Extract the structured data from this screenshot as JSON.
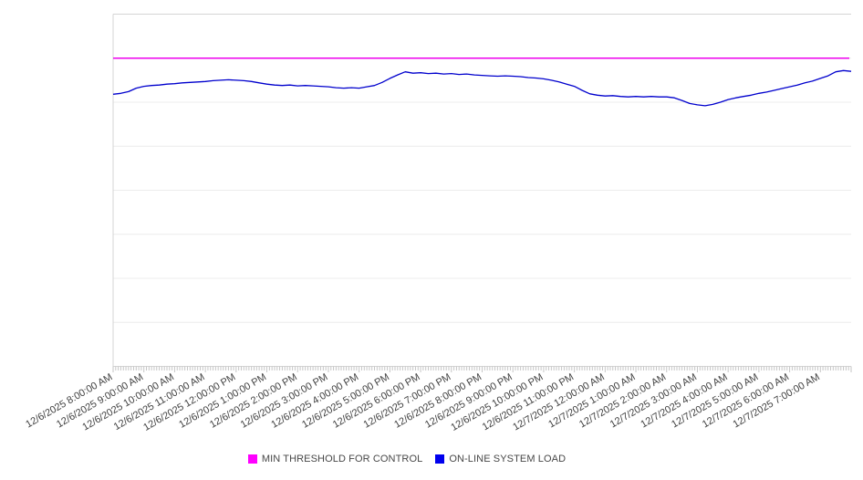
{
  "chart_data": {
    "type": "line",
    "title": "",
    "xlabel": "",
    "ylabel": "",
    "grid": "horizontal",
    "legend_position": "bottom-center",
    "ylim": [
      0,
      8
    ],
    "y_gridline_step": 1,
    "y_tick_labels_visible": false,
    "x_labels": [
      "12/6/2025 8:00:00 AM",
      "12/6/2025 9:00:00 AM",
      "12/6/2025 10:00:00 AM",
      "12/6/2025 11:00:00 AM",
      "12/6/2025 12:00:00 PM",
      "12/6/2025 1:00:00 PM",
      "12/6/2025 2:00:00 PM",
      "12/6/2025 3:00:00 PM",
      "12/6/2025 4:00:00 PM",
      "12/6/2025 5:00:00 PM",
      "12/6/2025 6:00:00 PM",
      "12/6/2025 7:00:00 PM",
      "12/6/2025 8:00:00 PM",
      "12/6/2025 9:00:00 PM",
      "12/6/2025 10:00:00 PM",
      "12/6/2025 11:00:00 PM",
      "12/7/2025 12:00:00 AM",
      "12/7/2025 1:00:00 AM",
      "12/7/2025 2:00:00 AM",
      "12/7/2025 3:00:00 AM",
      "12/7/2025 4:00:00 AM",
      "12/7/2025 5:00:00 AM",
      "12/7/2025 6:00:00 AM",
      "12/7/2025 7:00:00 AM"
    ],
    "hours_span": 24,
    "minor_ticks_per_hour": 12,
    "series": [
      {
        "name": "MIN THRESHOLD FOR CONTROL",
        "type": "constant",
        "value": 7.0,
        "color": "#ee00ee"
      },
      {
        "name": "ON-LINE SYSTEM LOAD",
        "type": "values",
        "sample_interval_minutes": 15,
        "color": "#0000cd",
        "values": [
          6.18,
          6.2,
          6.24,
          6.32,
          6.36,
          6.38,
          6.39,
          6.41,
          6.42,
          6.44,
          6.45,
          6.46,
          6.47,
          6.49,
          6.5,
          6.51,
          6.5,
          6.49,
          6.47,
          6.44,
          6.41,
          6.39,
          6.38,
          6.39,
          6.37,
          6.38,
          6.37,
          6.36,
          6.35,
          6.33,
          6.32,
          6.33,
          6.32,
          6.35,
          6.38,
          6.45,
          6.54,
          6.62,
          6.69,
          6.66,
          6.67,
          6.65,
          6.66,
          6.64,
          6.65,
          6.63,
          6.64,
          6.62,
          6.61,
          6.6,
          6.59,
          6.6,
          6.59,
          6.58,
          6.56,
          6.55,
          6.53,
          6.5,
          6.46,
          6.41,
          6.36,
          6.27,
          6.19,
          6.16,
          6.14,
          6.15,
          6.13,
          6.12,
          6.13,
          6.12,
          6.13,
          6.12,
          6.12,
          6.1,
          6.04,
          5.97,
          5.94,
          5.92,
          5.95,
          6.0,
          6.06,
          6.1,
          6.13,
          6.16,
          6.2,
          6.23,
          6.27,
          6.31,
          6.35,
          6.39,
          6.44,
          6.48,
          6.54,
          6.6,
          6.69,
          6.72,
          6.7
        ]
      }
    ]
  },
  "legend": {
    "items": [
      {
        "label": "MIN THRESHOLD FOR CONTROL",
        "color": "#ff00ff"
      },
      {
        "label": "ON-LINE SYSTEM LOAD",
        "color": "#0000ee"
      }
    ]
  },
  "colors": {
    "gridline": "#ececec",
    "plot_border": "#d4d4d4",
    "tick": "#c6c6c6",
    "axis_label_text": "#404040"
  }
}
